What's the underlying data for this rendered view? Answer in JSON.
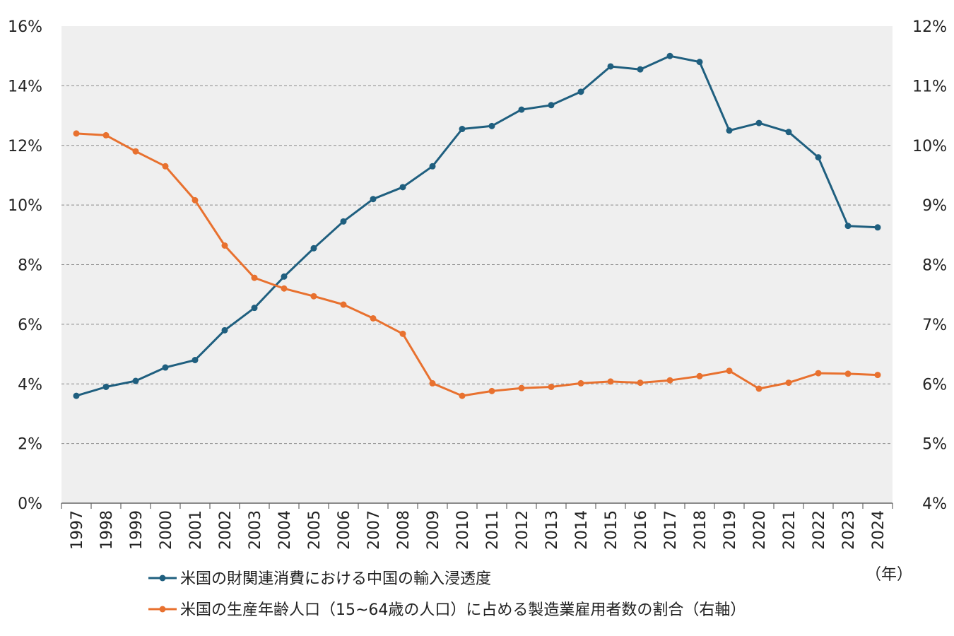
{
  "chart_data": {
    "type": "line",
    "categories": [
      "1997",
      "1998",
      "1999",
      "2000",
      "2001",
      "2002",
      "2003",
      "2004",
      "2005",
      "2006",
      "2007",
      "2008",
      "2009",
      "2010",
      "2011",
      "2012",
      "2013",
      "2014",
      "2015",
      "2016",
      "2017",
      "2018",
      "2019",
      "2020",
      "2021",
      "2022",
      "2023",
      "2024"
    ],
    "x_unit_label": "（年）",
    "left_axis": {
      "ticks": [
        "0%",
        "2%",
        "4%",
        "6%",
        "8%",
        "10%",
        "12%",
        "14%",
        "16%"
      ],
      "ylim": [
        0,
        16
      ]
    },
    "right_axis": {
      "ticks": [
        "4%",
        "5%",
        "6%",
        "7%",
        "8%",
        "9%",
        "10%",
        "11%",
        "12%"
      ],
      "ylim": [
        4,
        12
      ]
    },
    "grid": true,
    "legend_position": "bottom",
    "series": [
      {
        "name": "米国の財関連消費における中国の輸入浸透度",
        "axis": "left",
        "color": "#1f5f7f",
        "values": [
          3.6,
          3.9,
          4.1,
          4.55,
          4.8,
          5.8,
          6.55,
          7.6,
          8.55,
          9.45,
          10.2,
          10.6,
          11.3,
          12.55,
          12.65,
          13.2,
          13.35,
          13.8,
          14.65,
          14.55,
          15.0,
          14.8,
          12.5,
          12.75,
          12.45,
          11.6,
          9.3,
          9.25
        ]
      },
      {
        "name": "米国の生産年齢人口（15~64歳の人口）に占める製造業雇用者数の割合（右軸）",
        "axis": "right",
        "color": "#e8712f",
        "values": [
          10.2,
          10.17,
          9.9,
          9.65,
          9.08,
          8.32,
          7.78,
          7.6,
          7.47,
          7.33,
          7.1,
          6.84,
          6.01,
          5.8,
          5.88,
          5.93,
          5.95,
          6.01,
          6.04,
          6.02,
          6.06,
          6.13,
          6.22,
          5.92,
          6.02,
          6.18,
          6.17,
          6.15
        ]
      }
    ]
  }
}
